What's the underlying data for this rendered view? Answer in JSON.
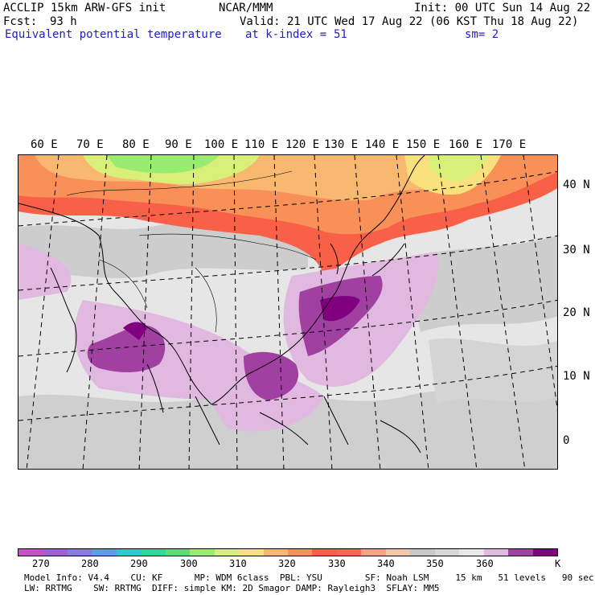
{
  "header": {
    "model_line": "ACCLIP 15km ARW-GFS init",
    "org": "NCAR/MMM",
    "init": "Init: 00 UTC Sun 14 Aug 22",
    "fcst_label": "Fcst:",
    "fcst_value": "93 h",
    "valid": "Valid: 21 UTC Wed 17 Aug 22 (06 KST Thu 18 Aug 22)",
    "field": "Equivalent potential temperature",
    "level": "at k-index =",
    "level_value": "51",
    "smooth": "sm= 2"
  },
  "lon_labels": [
    "60 E",
    "70 E",
    "80 E",
    "90 E",
    "100 E",
    "110 E",
    "120 E",
    "130 E",
    "140 E",
    "150 E",
    "160 E",
    "170 E"
  ],
  "lat_labels": [
    "40 N",
    "30 N",
    "20 N",
    "10 N",
    "0"
  ],
  "colorbar": {
    "colors": [
      "#c850c8",
      "#a060d8",
      "#8878e8",
      "#5c9cf0",
      "#30c8c8",
      "#30d8a0",
      "#58e078",
      "#98ec70",
      "#d8f078",
      "#f8e07c",
      "#f8b870",
      "#f89058",
      "#f86048",
      "#f86850",
      "#f8a088",
      "#f0c8a8",
      "#c8c8c8",
      "#d8d8d8",
      "#e8e8e8",
      "#e0b8e0",
      "#a040a0",
      "#800080"
    ],
    "labels": [
      "270",
      "280",
      "290",
      "300",
      "310",
      "320",
      "330",
      "340",
      "350",
      "360",
      "K"
    ]
  },
  "footer": {
    "line1": "Model Info: V4.4    CU: KF      MP: WDM 6class  PBL: YSU        SF: Noah LSM     15 km   51 levels   90 sec",
    "line2": "LW: RRTMG    SW: RRTMG  DIFF: simple KM: 2D Smagor DAMP: Rayleigh3  SFLAY: MM5"
  }
}
